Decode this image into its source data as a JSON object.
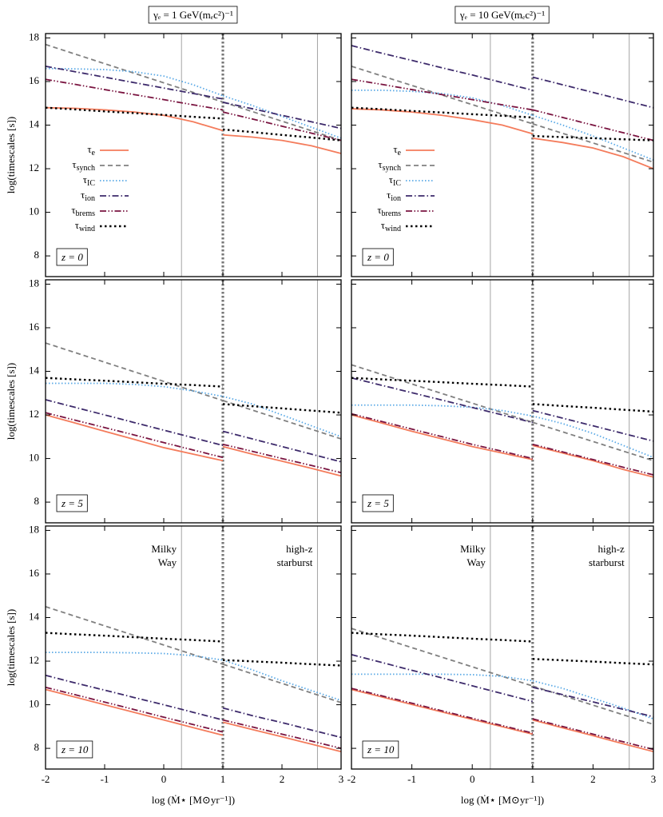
{
  "chart_data": [
    {
      "type": "line",
      "title": "γₑ = 1 GeV(mₑc²)⁻¹",
      "ylabel": "log(timescales [s])",
      "label": "z = 0",
      "x": [
        -2,
        -1.5,
        -1,
        -0.5,
        0,
        0.5,
        1,
        1,
        1,
        1.5,
        2,
        2.5,
        3
      ],
      "series": [
        {
          "name": "τ_e",
          "color": "#f47c5c",
          "style": "solid",
          "values": [
            14.8,
            14.77,
            14.7,
            14.6,
            14.45,
            14.15,
            13.75,
            null,
            13.55,
            13.45,
            13.3,
            13.05,
            12.7
          ]
        },
        {
          "name": "τ_synch",
          "color": "#808080",
          "style": "dashed",
          "values": [
            17.7,
            17.26,
            16.82,
            16.38,
            15.94,
            15.5,
            15.06,
            null,
            15.06,
            14.62,
            14.18,
            13.74,
            13.3
          ]
        },
        {
          "name": "τ_IC",
          "color": "#5aa9e6",
          "style": "dotted",
          "values": [
            16.6,
            16.58,
            16.55,
            16.45,
            16.25,
            15.85,
            15.35,
            null,
            15.35,
            14.9,
            14.4,
            13.9,
            13.4
          ]
        },
        {
          "name": "τ_ion",
          "color": "#3d2a6b",
          "style": "dashdot",
          "values": [
            16.7,
            16.45,
            16.2,
            15.95,
            15.7,
            15.45,
            15.2,
            null,
            15.05,
            14.75,
            14.45,
            14.15,
            13.85
          ]
        },
        {
          "name": "τ_brems",
          "color": "#7a1440",
          "style": "dashdotdot",
          "values": [
            16.1,
            15.87,
            15.63,
            15.4,
            15.17,
            14.93,
            14.7,
            null,
            14.6,
            14.28,
            13.95,
            13.63,
            13.3
          ]
        },
        {
          "name": "τ_wind",
          "color": "#000000",
          "style": "dotted-thick",
          "values": [
            14.8,
            14.72,
            14.63,
            14.55,
            14.47,
            14.38,
            14.3,
            null,
            13.8,
            13.68,
            13.55,
            13.43,
            13.3
          ]
        }
      ],
      "xlim": [
        -2,
        3
      ],
      "ylim": [
        7.05,
        18.2
      ],
      "xticks": [
        -2,
        -1,
        0,
        1,
        2,
        3
      ],
      "yticks": [
        8,
        10,
        12,
        14,
        16,
        18
      ],
      "xtick_labels": false,
      "ytick_labels": true,
      "vlines": [
        0.3,
        2.6
      ],
      "divider": 1,
      "legend": "center left"
    },
    {
      "type": "line",
      "title": "γₑ = 10 GeV(mₑc²)⁻¹",
      "label": "z = 0",
      "x": [
        -2,
        -1.5,
        -1,
        -0.5,
        0,
        0.5,
        1,
        1,
        1,
        1.5,
        2,
        2.5,
        3
      ],
      "series": [
        {
          "name": "τ_e",
          "color": "#f47c5c",
          "style": "solid",
          "values": [
            14.75,
            14.7,
            14.6,
            14.45,
            14.25,
            14.0,
            13.6,
            null,
            13.4,
            13.2,
            12.95,
            12.55,
            12.0
          ]
        },
        {
          "name": "τ_synch",
          "color": "#808080",
          "style": "dashed",
          "values": [
            16.7,
            16.26,
            15.82,
            15.38,
            14.94,
            14.5,
            14.06,
            null,
            14.06,
            13.62,
            13.18,
            12.74,
            12.3
          ]
        },
        {
          "name": "τ_IC",
          "color": "#5aa9e6",
          "style": "dotted",
          "values": [
            15.6,
            15.6,
            15.55,
            15.45,
            15.25,
            14.9,
            14.45,
            null,
            14.45,
            14.0,
            13.5,
            12.95,
            12.4
          ]
        },
        {
          "name": "τ_ion",
          "color": "#3d2a6b",
          "style": "dashdot",
          "values": [
            17.65,
            17.3,
            16.97,
            16.63,
            16.3,
            15.95,
            15.6,
            null,
            16.2,
            15.85,
            15.5,
            15.15,
            14.8
          ]
        },
        {
          "name": "τ_brems",
          "color": "#7a1440",
          "style": "dashdotdot",
          "values": [
            16.1,
            15.87,
            15.63,
            15.4,
            15.17,
            14.93,
            14.7,
            null,
            14.7,
            14.35,
            14.0,
            13.65,
            13.3
          ]
        },
        {
          "name": "τ_wind",
          "color": "#000000",
          "style": "dotted-thick",
          "values": [
            14.8,
            14.73,
            14.65,
            14.58,
            14.5,
            14.43,
            14.35,
            null,
            13.5,
            13.45,
            13.4,
            13.35,
            13.3
          ]
        }
      ],
      "xlim": [
        -2,
        3
      ],
      "ylim": [
        7.05,
        18.2
      ],
      "xticks": [
        -2,
        -1,
        0,
        1,
        2,
        3
      ],
      "yticks": [
        8,
        10,
        12,
        14,
        16,
        18
      ],
      "xtick_labels": false,
      "ytick_labels": false,
      "vlines": [
        0.3,
        2.6
      ],
      "divider": 1,
      "legend": "center left"
    },
    {
      "type": "line",
      "ylabel": "log(timescales [s])",
      "label": "z = 5",
      "x": [
        -2,
        -1.5,
        -1,
        -0.5,
        0,
        0.5,
        1,
        1,
        1,
        1.5,
        2,
        2.5,
        3
      ],
      "series": [
        {
          "color": "#f47c5c",
          "style": "solid",
          "values": [
            12.0,
            11.63,
            11.25,
            10.88,
            10.5,
            10.2,
            9.9,
            null,
            10.55,
            10.2,
            9.88,
            9.55,
            9.2
          ]
        },
        {
          "color": "#808080",
          "style": "dashed",
          "values": [
            15.3,
            14.86,
            14.42,
            13.98,
            13.54,
            13.1,
            12.66,
            null,
            12.66,
            12.22,
            11.78,
            11.34,
            10.9
          ]
        },
        {
          "color": "#5aa9e6",
          "style": "dotted",
          "values": [
            13.45,
            13.45,
            13.45,
            13.4,
            13.3,
            13.1,
            12.85,
            null,
            12.85,
            12.5,
            12.0,
            11.5,
            11.0
          ]
        },
        {
          "color": "#3d2a6b",
          "style": "dashdot",
          "values": [
            12.7,
            12.35,
            12.0,
            11.65,
            11.3,
            10.95,
            10.6,
            null,
            11.25,
            10.9,
            10.55,
            10.2,
            9.85
          ]
        },
        {
          "color": "#7a1440",
          "style": "dashdotdot",
          "values": [
            12.1,
            11.76,
            11.42,
            11.08,
            10.73,
            10.39,
            10.05,
            null,
            10.65,
            10.33,
            10.0,
            9.68,
            9.35
          ]
        },
        {
          "color": "#000000",
          "style": "dotted-thick",
          "values": [
            13.7,
            13.63,
            13.57,
            13.5,
            13.43,
            13.37,
            13.3,
            null,
            12.5,
            12.4,
            12.3,
            12.2,
            12.1
          ]
        }
      ],
      "xlim": [
        -2,
        3
      ],
      "ylim": [
        7.05,
        18.2
      ],
      "xticks": [
        -2,
        -1,
        0,
        1,
        2,
        3
      ],
      "yticks": [
        8,
        10,
        12,
        14,
        16,
        18
      ],
      "xtick_labels": false,
      "ytick_labels": true,
      "vlines": [
        0.3,
        2.6
      ],
      "divider": 1
    },
    {
      "type": "line",
      "label": "z = 5",
      "x": [
        -2,
        -1.5,
        -1,
        -0.5,
        0,
        0.5,
        1,
        1,
        1,
        1.5,
        2,
        2.5,
        3
      ],
      "series": [
        {
          "color": "#f47c5c",
          "style": "solid",
          "values": [
            12.0,
            11.63,
            11.25,
            10.9,
            10.55,
            10.25,
            9.95,
            null,
            10.6,
            10.25,
            9.9,
            9.5,
            9.15
          ]
        },
        {
          "color": "#808080",
          "style": "dashed",
          "values": [
            14.3,
            13.86,
            13.42,
            12.98,
            12.54,
            12.1,
            11.66,
            null,
            11.66,
            11.22,
            10.78,
            10.34,
            9.9
          ]
        },
        {
          "color": "#5aa9e6",
          "style": "dotted",
          "values": [
            12.45,
            12.45,
            12.45,
            12.42,
            12.35,
            12.2,
            11.95,
            null,
            11.95,
            11.6,
            11.15,
            10.6,
            10.05
          ]
        },
        {
          "color": "#3d2a6b",
          "style": "dashdot",
          "values": [
            13.7,
            13.36,
            13.02,
            12.68,
            12.34,
            12.0,
            11.65,
            null,
            12.2,
            11.85,
            11.5,
            11.15,
            10.8
          ]
        },
        {
          "color": "#7a1440",
          "style": "dashdotdot",
          "values": [
            12.05,
            11.7,
            11.35,
            11.0,
            10.65,
            10.33,
            10.0,
            null,
            10.65,
            10.3,
            9.95,
            9.6,
            9.25
          ]
        },
        {
          "color": "#000000",
          "style": "dotted-thick",
          "values": [
            13.7,
            13.63,
            13.57,
            13.5,
            13.43,
            13.37,
            13.3,
            null,
            12.5,
            12.41,
            12.33,
            12.24,
            12.15
          ]
        }
      ],
      "xlim": [
        -2,
        3
      ],
      "ylim": [
        7.05,
        18.2
      ],
      "xticks": [
        -2,
        -1,
        0,
        1,
        2,
        3
      ],
      "yticks": [
        8,
        10,
        12,
        14,
        16,
        18
      ],
      "xtick_labels": false,
      "ytick_labels": false,
      "vlines": [
        0.3,
        2.6
      ],
      "divider": 1
    },
    {
      "type": "line",
      "ylabel": "log(timescales [s])",
      "xlabel": "log (Ṁ⋆ [M⊙yr⁻¹])",
      "label": "z = 10",
      "annotations": [
        "Milky Way",
        "high-z starburst"
      ],
      "x": [
        -2,
        -1.5,
        -1,
        -0.5,
        0,
        0.5,
        1,
        1,
        1,
        1.5,
        2,
        2.5,
        3
      ],
      "series": [
        {
          "color": "#f47c5c",
          "style": "solid",
          "values": [
            10.7,
            10.35,
            10.0,
            9.65,
            9.3,
            8.95,
            8.6,
            null,
            9.2,
            8.86,
            8.53,
            8.19,
            7.85
          ]
        },
        {
          "color": "#808080",
          "style": "dashed",
          "values": [
            14.5,
            14.06,
            13.62,
            13.18,
            12.74,
            12.3,
            11.86,
            null,
            11.86,
            11.42,
            10.98,
            10.54,
            10.1
          ]
        },
        {
          "color": "#5aa9e6",
          "style": "dotted",
          "values": [
            12.4,
            12.4,
            12.4,
            12.38,
            12.35,
            12.25,
            12.05,
            null,
            12.05,
            11.6,
            11.1,
            10.65,
            10.2
          ]
        },
        {
          "color": "#3d2a6b",
          "style": "dashdot",
          "values": [
            11.35,
            11.0,
            10.67,
            10.33,
            10.0,
            9.65,
            9.3,
            null,
            9.85,
            9.5,
            9.18,
            8.84,
            8.5
          ]
        },
        {
          "color": "#7a1440",
          "style": "dashdotdot",
          "values": [
            10.8,
            10.46,
            10.12,
            9.78,
            9.43,
            9.09,
            8.75,
            null,
            9.3,
            8.98,
            8.65,
            8.33,
            8.0
          ]
        },
        {
          "color": "#000000",
          "style": "dotted-thick",
          "values": [
            13.3,
            13.23,
            13.17,
            13.1,
            13.03,
            12.97,
            12.9,
            null,
            12.05,
            11.99,
            11.93,
            11.86,
            11.8
          ]
        }
      ],
      "xlim": [
        -2,
        3
      ],
      "ylim": [
        7.05,
        18.2
      ],
      "xticks": [
        -2,
        -1,
        0,
        1,
        2,
        3
      ],
      "yticks": [
        8,
        10,
        12,
        14,
        16,
        18
      ],
      "xtick_labels": true,
      "ytick_labels": true,
      "vlines": [
        0.3,
        2.6
      ],
      "divider": 1
    },
    {
      "type": "line",
      "xlabel": "log (Ṁ⋆ [M⊙yr⁻¹])",
      "label": "z = 10",
      "annotations": [
        "Milky Way",
        "high-z starburst"
      ],
      "x": [
        -2,
        -1.5,
        -1,
        -0.5,
        0,
        0.5,
        1,
        1,
        1,
        1.5,
        2,
        2.5,
        3
      ],
      "series": [
        {
          "color": "#f47c5c",
          "style": "solid",
          "values": [
            10.7,
            10.36,
            10.01,
            9.67,
            9.33,
            8.99,
            8.65,
            null,
            9.3,
            8.94,
            8.58,
            8.21,
            7.85
          ]
        },
        {
          "color": "#808080",
          "style": "dashed",
          "values": [
            13.5,
            13.06,
            12.62,
            12.18,
            11.74,
            11.3,
            10.86,
            null,
            10.86,
            10.42,
            9.98,
            9.54,
            9.1
          ]
        },
        {
          "color": "#5aa9e6",
          "style": "dotted",
          "values": [
            11.4,
            11.4,
            11.4,
            11.4,
            11.38,
            11.3,
            11.1,
            null,
            11.1,
            10.75,
            10.3,
            9.85,
            9.35
          ]
        },
        {
          "color": "#3d2a6b",
          "style": "dashdot",
          "values": [
            12.3,
            11.94,
            11.58,
            11.23,
            10.87,
            10.51,
            10.15,
            null,
            10.8,
            10.46,
            10.13,
            9.79,
            9.45
          ]
        },
        {
          "color": "#7a1440",
          "style": "dashdotdot",
          "values": [
            10.75,
            10.41,
            10.07,
            9.72,
            9.38,
            9.04,
            8.7,
            null,
            9.35,
            9.0,
            8.65,
            8.3,
            7.95
          ]
        },
        {
          "color": "#000000",
          "style": "dotted-thick",
          "values": [
            13.3,
            13.23,
            13.17,
            13.1,
            13.03,
            12.97,
            12.9,
            null,
            12.1,
            12.04,
            11.98,
            11.91,
            11.85
          ]
        }
      ],
      "xlim": [
        -2,
        3
      ],
      "ylim": [
        7.05,
        18.2
      ],
      "xticks": [
        -2,
        -1,
        0,
        1,
        2,
        3
      ],
      "yticks": [
        8,
        10,
        12,
        14,
        16,
        18
      ],
      "xtick_labels": true,
      "ytick_labels": false,
      "vlines": [
        0.3,
        2.6
      ],
      "divider": 1
    }
  ]
}
